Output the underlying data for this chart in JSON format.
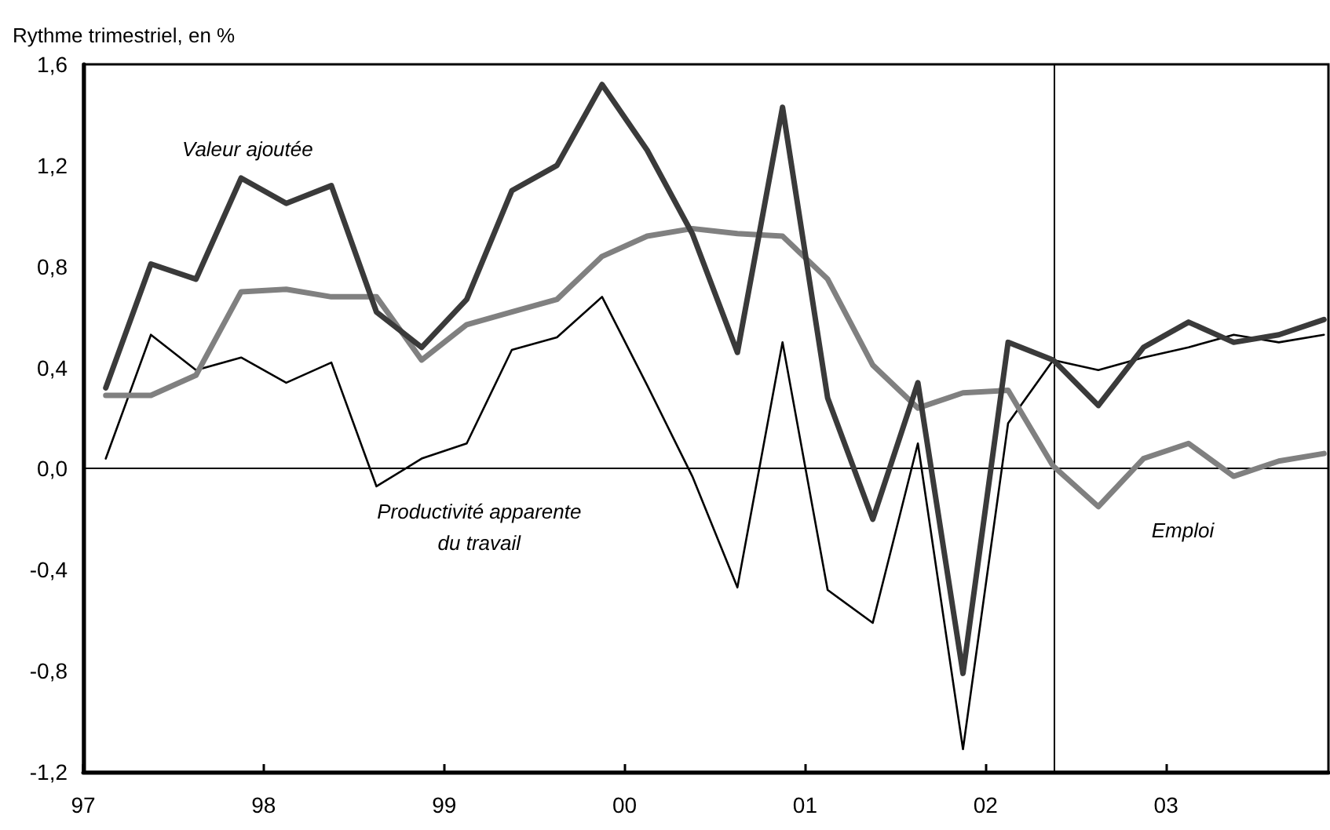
{
  "chart_data": {
    "type": "line",
    "ylabel": "Rythme trimestriel, en %",
    "x": [
      1997.125,
      1997.375,
      1997.625,
      1997.875,
      1998.125,
      1998.375,
      1998.625,
      1998.875,
      1999.125,
      1999.375,
      1999.625,
      1999.875,
      2000.125,
      2000.375,
      2000.625,
      2000.875,
      2001.125,
      2001.375,
      2001.625,
      2001.875,
      2002.125,
      2002.375,
      2002.625,
      2002.875,
      2003.125,
      2003.375,
      2003.625,
      2003.875
    ],
    "series": [
      {
        "name": "Valeur ajoutée",
        "color": "#3a3a3a",
        "values": [
          0.32,
          0.81,
          0.75,
          1.15,
          1.05,
          1.12,
          0.62,
          0.48,
          0.67,
          1.1,
          1.2,
          1.52,
          1.26,
          0.93,
          0.46,
          1.43,
          0.28,
          -0.2,
          0.34,
          -0.81,
          0.5,
          0.43,
          0.25,
          0.48,
          0.58,
          0.5,
          0.53,
          0.59
        ]
      },
      {
        "name": "Emploi",
        "color": "#808080",
        "values": [
          0.29,
          0.29,
          0.37,
          0.7,
          0.71,
          0.68,
          0.68,
          0.43,
          0.57,
          0.62,
          0.67,
          0.84,
          0.92,
          0.95,
          0.93,
          0.92,
          0.75,
          0.41,
          0.24,
          0.3,
          0.31,
          0.01,
          -0.15,
          0.04,
          0.1,
          -0.03,
          0.03,
          0.06
        ]
      },
      {
        "name": "Productivité apparente du travail",
        "color": "#000000",
        "values": [
          0.04,
          0.53,
          0.39,
          0.44,
          0.34,
          0.42,
          -0.07,
          0.04,
          0.1,
          0.47,
          0.52,
          0.68,
          0.33,
          -0.03,
          -0.47,
          0.5,
          -0.48,
          -0.61,
          0.1,
          -1.11,
          0.18,
          0.43,
          0.39,
          0.44,
          0.48,
          0.53,
          0.5,
          0.53
        ]
      }
    ],
    "xlim": [
      1997,
      2003.9
    ],
    "xticks": [
      {
        "value": 1997,
        "label": "97"
      },
      {
        "value": 1998,
        "label": "98"
      },
      {
        "value": 1999,
        "label": "99"
      },
      {
        "value": 2000,
        "label": "00"
      },
      {
        "value": 2001,
        "label": "01"
      },
      {
        "value": 2002,
        "label": "02"
      },
      {
        "value": 2003,
        "label": "03"
      }
    ],
    "ylim": [
      -1.2,
      1.6
    ],
    "yticks": [
      {
        "value": -1.2,
        "label": "-1,2"
      },
      {
        "value": -0.8,
        "label": "-0,8"
      },
      {
        "value": -0.4,
        "label": "-0,4"
      },
      {
        "value": 0,
        "label": "0,0"
      },
      {
        "value": 0.4,
        "label": "0,4"
      },
      {
        "value": 0.8,
        "label": "0,8"
      },
      {
        "value": 1.2,
        "label": "1,2"
      },
      {
        "value": 1.6,
        "label": "1,6"
      }
    ],
    "ref_lines": [
      {
        "axis": "y",
        "value": 0,
        "color": "#000000"
      },
      {
        "axis": "x",
        "value": 2002.375,
        "color": "#000000"
      }
    ],
    "grid": false,
    "legend": false,
    "marker": "none",
    "line_style": "solid"
  }
}
